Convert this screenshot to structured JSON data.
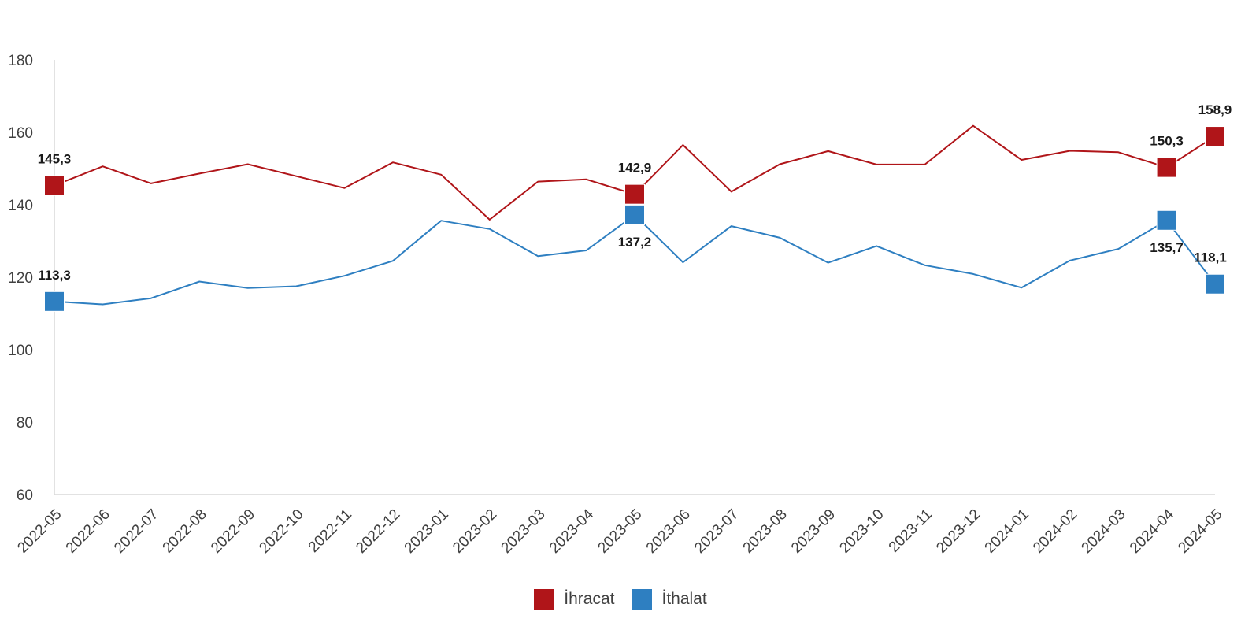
{
  "chart_data": {
    "type": "line",
    "title": "",
    "xlabel": "",
    "ylabel": "",
    "ylim": [
      60,
      180
    ],
    "yticks": [
      "60",
      "80",
      "100",
      "120",
      "140",
      "160",
      "180"
    ],
    "grid": false,
    "legend_position": "bottom",
    "categories": [
      "2022-05",
      "2022-06",
      "2022-07",
      "2022-08",
      "2022-09",
      "2022-10",
      "2022-11",
      "2022-12",
      "2023-01",
      "2023-02",
      "2023-03",
      "2023-04",
      "2023-05",
      "2023-06",
      "2023-07",
      "2023-08",
      "2023-09",
      "2023-10",
      "2023-11",
      "2023-12",
      "2024-01",
      "2024-02",
      "2024-03",
      "2024-04",
      "2024-05"
    ],
    "series": [
      {
        "name": "İhracat",
        "color": "#b01519",
        "values": [
          145.3,
          150.6,
          145.9,
          148.6,
          151.2,
          147.9,
          144.6,
          151.7,
          148.3,
          135.9,
          146.4,
          147.0,
          142.9,
          156.5,
          143.6,
          151.2,
          154.8,
          151.1,
          151.1,
          161.8,
          152.4,
          154.9,
          154.5,
          150.3,
          158.9
        ],
        "labels": [
          {
            "index": 0,
            "text": "145,3"
          },
          {
            "index": 12,
            "text": "142,9"
          },
          {
            "index": 23,
            "text": "150,3"
          },
          {
            "index": 24,
            "text": "158,9"
          }
        ]
      },
      {
        "name": "İthalat",
        "color": "#2e7fc1",
        "values": [
          113.3,
          112.5,
          114.2,
          118.8,
          117.0,
          117.5,
          120.4,
          124.5,
          135.6,
          133.3,
          125.8,
          127.4,
          137.2,
          124.1,
          134.1,
          130.9,
          124.0,
          128.6,
          123.3,
          120.9,
          117.1,
          124.6,
          127.8,
          135.7,
          118.1
        ],
        "labels": [
          {
            "index": 0,
            "text": "113,3"
          },
          {
            "index": 12,
            "text": "137,2"
          },
          {
            "index": 23,
            "text": "135,7"
          },
          {
            "index": 24,
            "text": "118,1"
          }
        ]
      }
    ]
  }
}
